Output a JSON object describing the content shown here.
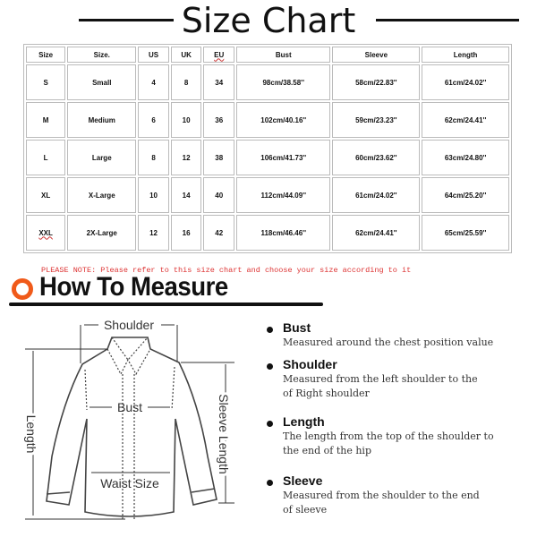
{
  "header": {
    "title": "Size Chart"
  },
  "table": {
    "columns": [
      "Size",
      "Size.",
      "US",
      "UK",
      "EU",
      "Bust",
      "Sleeve",
      "Length"
    ],
    "rows": [
      [
        "S",
        "Small",
        "4",
        "8",
        "34",
        "98cm/38.58''",
        "58cm/22.83''",
        "61cm/24.02''"
      ],
      [
        "M",
        "Medium",
        "6",
        "10",
        "36",
        "102cm/40.16''",
        "59cm/23.23''",
        "62cm/24.41''"
      ],
      [
        "L",
        "Large",
        "8",
        "12",
        "38",
        "106cm/41.73''",
        "60cm/23.62''",
        "63cm/24.80''"
      ],
      [
        "XL",
        "X-Large",
        "10",
        "14",
        "40",
        "112cm/44.09''",
        "61cm/24.02''",
        "64cm/25.20''"
      ],
      [
        "XXL",
        "2X-Large",
        "12",
        "16",
        "42",
        "118cm/46.46''",
        "62cm/24.41''",
        "65cm/25.59''"
      ]
    ]
  },
  "note": "PLEASE NOTE: Please refer to this size chart and choose your size according to it",
  "how_to_measure": {
    "title": "How To Measure",
    "accent_color": "#f05a1a",
    "diagram_labels": {
      "shoulder": "Shoulder",
      "bust": "Bust",
      "length": "Length",
      "sleeve_length": "Sleeve Length",
      "waist": "Waist Size"
    },
    "items": [
      {
        "name": "Bust",
        "lines": [
          "Measured around the chest position value"
        ]
      },
      {
        "name": "Shoulder",
        "lines": [
          "Measured from the left shoulder to the",
          "of Right shoulder"
        ]
      },
      {
        "name": "Length",
        "lines": [
          "The length from the top of the shoulder to",
          "the end of the hip"
        ]
      },
      {
        "name": "Sleeve",
        "lines": [
          "Measured from the shoulder to the end",
          "of sleeve"
        ]
      }
    ]
  }
}
